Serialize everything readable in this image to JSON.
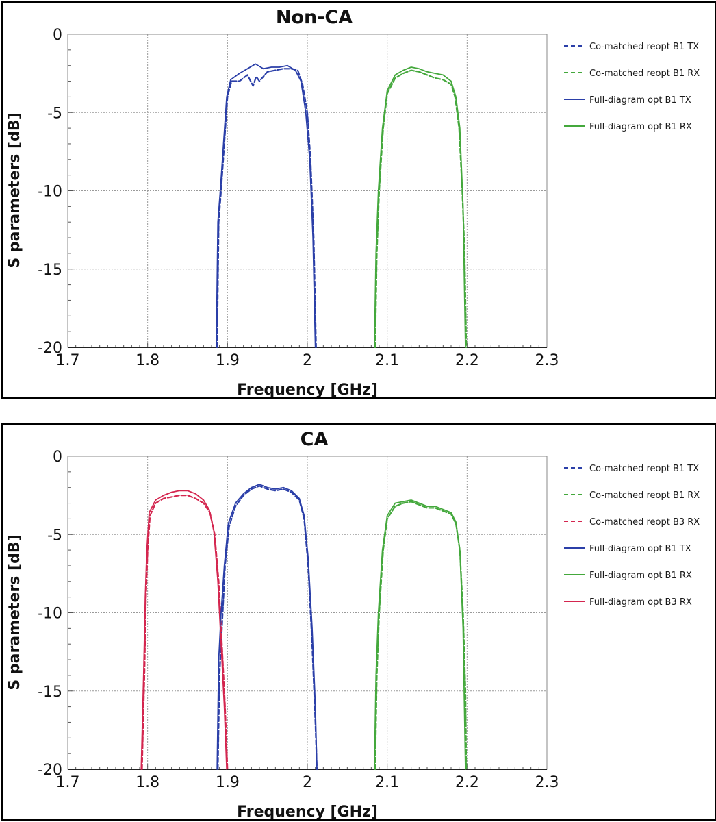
{
  "chart_data": [
    {
      "type": "line",
      "title": "Non-CA",
      "xlabel": "Frequency [GHz]",
      "ylabel": "S parameters [dB]",
      "xlim": [
        1.7,
        2.3
      ],
      "ylim": [
        -20,
        0
      ],
      "x_ticks": [
        "1.7",
        "1.8",
        "1.9",
        "2",
        "2.1",
        "2.2",
        "2.3"
      ],
      "y_ticks": [
        "0",
        "-5",
        "-10",
        "-15",
        "-20"
      ],
      "grid": true,
      "legend_position": "right",
      "legend": [
        "Co-matched reopt B1 TX",
        "Co-matched reopt B1 RX",
        "Full-diagram opt B1 TX",
        "Full-diagram opt B1 RX"
      ],
      "series": [
        {
          "name": "Co-matched reopt B1 TX",
          "color": "#2b3fa8",
          "style": "dashed",
          "x": [
            1.887,
            1.889,
            1.892,
            1.896,
            1.9,
            1.905,
            1.915,
            1.925,
            1.932,
            1.936,
            1.94,
            1.95,
            1.96,
            1.97,
            1.98,
            1.988,
            1.994,
            2.0,
            2.004,
            2.008,
            2.011
          ],
          "y": [
            -20,
            -12,
            -10,
            -7,
            -4,
            -3,
            -3.0,
            -2.6,
            -3.3,
            -2.7,
            -3.0,
            -2.4,
            -2.3,
            -2.2,
            -2.2,
            -2.3,
            -3.2,
            -5,
            -8,
            -13,
            -20
          ]
        },
        {
          "name": "Co-matched reopt B1 RX",
          "color": "#44a83c",
          "style": "dashed",
          "x": [
            2.085,
            2.087,
            2.09,
            2.095,
            2.1,
            2.11,
            2.12,
            2.13,
            2.14,
            2.15,
            2.16,
            2.17,
            2.18,
            2.185,
            2.19,
            2.194,
            2.197,
            2.199
          ],
          "y": [
            -20,
            -14,
            -10,
            -6,
            -3.8,
            -2.8,
            -2.5,
            -2.3,
            -2.4,
            -2.6,
            -2.8,
            -2.9,
            -3.2,
            -4,
            -6,
            -10,
            -14,
            -20
          ]
        },
        {
          "name": "Full-diagram opt B1 TX",
          "color": "#2b3fa8",
          "style": "solid",
          "x": [
            1.886,
            1.888,
            1.891,
            1.895,
            1.899,
            1.904,
            1.915,
            1.925,
            1.935,
            1.945,
            1.955,
            1.965,
            1.975,
            1.985,
            1.992,
            1.998,
            2.003,
            2.007,
            2.01
          ],
          "y": [
            -20,
            -12,
            -10,
            -7,
            -4,
            -2.9,
            -2.5,
            -2.2,
            -1.9,
            -2.2,
            -2.1,
            -2.1,
            -2.0,
            -2.3,
            -3.0,
            -5,
            -8,
            -13,
            -20
          ]
        },
        {
          "name": "Full-diagram opt B1 RX",
          "color": "#44a83c",
          "style": "solid",
          "x": [
            2.084,
            2.086,
            2.089,
            2.094,
            2.1,
            2.11,
            2.12,
            2.13,
            2.14,
            2.15,
            2.16,
            2.17,
            2.18,
            2.186,
            2.191,
            2.195,
            2.198
          ],
          "y": [
            -20,
            -14,
            -10,
            -6,
            -3.6,
            -2.6,
            -2.3,
            -2.1,
            -2.2,
            -2.4,
            -2.5,
            -2.6,
            -3.0,
            -4,
            -6,
            -11,
            -20
          ]
        }
      ]
    },
    {
      "type": "line",
      "title": "CA",
      "xlabel": "Frequency [GHz]",
      "ylabel": "S parameters [dB]",
      "xlim": [
        1.7,
        2.3
      ],
      "ylim": [
        -20,
        0
      ],
      "x_ticks": [
        "1.7",
        "1.8",
        "1.9",
        "2",
        "2.1",
        "2.2",
        "2.3"
      ],
      "y_ticks": [
        "0",
        "-5",
        "-10",
        "-15",
        "-20"
      ],
      "grid": true,
      "legend_position": "right",
      "legend": [
        "Co-matched reopt B1 TX",
        "Co-matched reopt B1 RX",
        "Co-matched reopt B3 RX",
        "Full-diagram opt B1 TX",
        "Full-diagram opt B1 RX",
        "Full-diagram opt B3 RX"
      ],
      "series": [
        {
          "name": "Co-matched reopt B1 TX",
          "color": "#2b3fa8",
          "style": "dashed",
          "x": [
            1.888,
            1.89,
            1.893,
            1.897,
            1.902,
            1.91,
            1.92,
            1.93,
            1.94,
            1.95,
            1.96,
            1.97,
            1.98,
            1.99,
            1.996,
            2.001,
            2.006,
            2.01,
            2.012
          ],
          "y": [
            -20,
            -14,
            -11,
            -7,
            -4.5,
            -3.2,
            -2.5,
            -2.1,
            -1.9,
            -2.1,
            -2.2,
            -2.1,
            -2.3,
            -2.8,
            -4,
            -7,
            -12,
            -17,
            -20
          ]
        },
        {
          "name": "Co-matched reopt B1 RX",
          "color": "#44a83c",
          "style": "dashed",
          "x": [
            2.085,
            2.087,
            2.09,
            2.095,
            2.1,
            2.11,
            2.12,
            2.13,
            2.14,
            2.15,
            2.16,
            2.17,
            2.18,
            2.186,
            2.191,
            2.195,
            2.198,
            2.199
          ],
          "y": [
            -20,
            -14,
            -10,
            -6,
            -4,
            -3.2,
            -3.0,
            -2.9,
            -3.1,
            -3.3,
            -3.3,
            -3.5,
            -3.7,
            -4.3,
            -6,
            -10,
            -15,
            -20
          ]
        },
        {
          "name": "Co-matched reopt B3 RX",
          "color": "#d4264f",
          "style": "dashed",
          "x": [
            1.793,
            1.796,
            1.798,
            1.8,
            1.803,
            1.81,
            1.82,
            1.83,
            1.84,
            1.85,
            1.86,
            1.87,
            1.878,
            1.884,
            1.889,
            1.893,
            1.897,
            1.9
          ],
          "y": [
            -20,
            -14,
            -9,
            -6,
            -3.8,
            -3.0,
            -2.7,
            -2.6,
            -2.5,
            -2.5,
            -2.7,
            -3.0,
            -3.6,
            -5,
            -8,
            -12,
            -16,
            -20
          ]
        },
        {
          "name": "Full-diagram opt B1 TX",
          "color": "#2b3fa8",
          "style": "solid",
          "x": [
            1.887,
            1.889,
            1.892,
            1.896,
            1.901,
            1.91,
            1.92,
            1.93,
            1.94,
            1.95,
            1.96,
            1.97,
            1.98,
            1.99,
            1.996,
            2.001,
            2.006,
            2.01,
            2.012
          ],
          "y": [
            -20,
            -13,
            -10,
            -7,
            -4.3,
            -3.0,
            -2.4,
            -2.0,
            -1.8,
            -2.0,
            -2.1,
            -2.0,
            -2.2,
            -2.7,
            -3.8,
            -6.5,
            -11,
            -16,
            -20
          ]
        },
        {
          "name": "Full-diagram opt B1 RX",
          "color": "#44a83c",
          "style": "solid",
          "x": [
            2.084,
            2.086,
            2.089,
            2.094,
            2.1,
            2.11,
            2.12,
            2.13,
            2.14,
            2.15,
            2.16,
            2.17,
            2.18,
            2.186,
            2.191,
            2.195,
            2.198
          ],
          "y": [
            -20,
            -14,
            -10,
            -6,
            -3.8,
            -3.0,
            -2.9,
            -2.8,
            -3.0,
            -3.2,
            -3.2,
            -3.4,
            -3.6,
            -4.2,
            -6,
            -11,
            -20
          ]
        },
        {
          "name": "Full-diagram opt B3 RX",
          "color": "#d4264f",
          "style": "solid",
          "x": [
            1.792,
            1.795,
            1.797,
            1.799,
            1.802,
            1.81,
            1.82,
            1.83,
            1.84,
            1.85,
            1.86,
            1.87,
            1.877,
            1.883,
            1.888,
            1.892,
            1.896,
            1.899
          ],
          "y": [
            -20,
            -14,
            -9,
            -6,
            -3.6,
            -2.8,
            -2.5,
            -2.3,
            -2.2,
            -2.2,
            -2.4,
            -2.8,
            -3.4,
            -4.8,
            -8,
            -12,
            -16,
            -20
          ]
        }
      ]
    }
  ]
}
